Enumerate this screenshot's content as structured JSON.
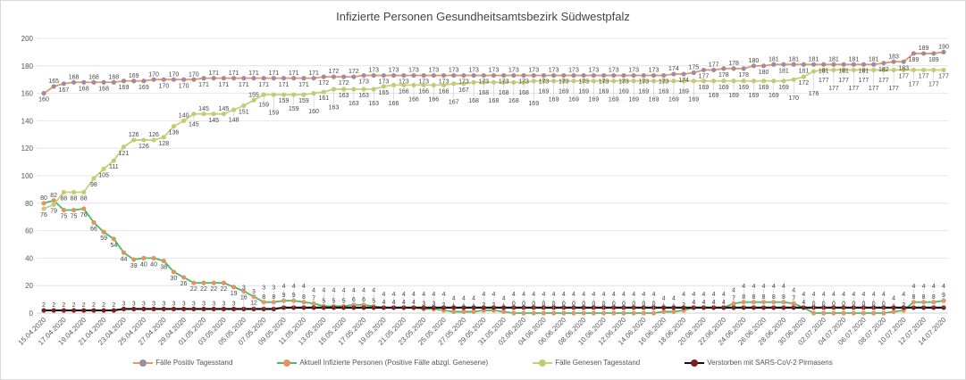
{
  "chart_data": {
    "type": "line",
    "title": "Infizierte Personen Gesundheitsamtsbezirk Südwestpfalz",
    "xlabel": "",
    "ylabel": "",
    "ylim": [
      0,
      200
    ],
    "yticks": [
      0,
      20,
      40,
      60,
      80,
      100,
      120,
      140,
      160,
      180,
      200
    ],
    "grid": true,
    "legend_position": "bottom",
    "start_date": "15.04.2020",
    "end_date": "14.07.2020",
    "x_tick_every": 2,
    "series": [
      {
        "name": "Fälle Positiv Tagesstand",
        "line_color": "#E8955E",
        "marker_color": "#9D8CA6",
        "values": [
          160,
          165,
          167,
          168,
          168,
          168,
          168,
          168,
          169,
          169,
          169,
          170,
          170,
          170,
          170,
          170,
          171,
          171,
          171,
          171,
          171,
          171,
          171,
          171,
          171,
          171,
          171,
          171,
          172,
          172,
          172,
          172,
          173,
          173,
          173,
          173,
          173,
          173,
          173,
          173,
          173,
          173,
          173,
          173,
          173,
          173,
          173,
          173,
          173,
          173,
          173,
          173,
          173,
          173,
          173,
          173,
          173,
          173,
          173,
          173,
          173,
          173,
          173,
          174,
          174,
          175,
          177,
          177,
          178,
          178,
          178,
          180,
          180,
          181,
          181,
          181,
          181,
          181,
          181,
          181,
          181,
          181,
          181,
          181,
          182,
          183,
          183,
          189,
          189,
          189,
          190
        ]
      },
      {
        "name": "Aktuell Infizierte Personen (Positive Fälle abzgl. Genesene)",
        "line_color": "#4DB86B",
        "marker_color": "#E0955C",
        "values": [
          80,
          82,
          75,
          75,
          76,
          66,
          59,
          54,
          44,
          39,
          40,
          40,
          38,
          30,
          26,
          22,
          22,
          22,
          22,
          19,
          16,
          12,
          8,
          8,
          9,
          9,
          8,
          7,
          5,
          5,
          5,
          6,
          6,
          5,
          4,
          4,
          4,
          4,
          3,
          3,
          2,
          1,
          1,
          1,
          2,
          2,
          1,
          0,
          0,
          0,
          0,
          0,
          0,
          0,
          0,
          0,
          0,
          0,
          0,
          0,
          0,
          0,
          1,
          1,
          2,
          4,
          4,
          4,
          4,
          7,
          8,
          8,
          8,
          8,
          8,
          7,
          4,
          0,
          0,
          0,
          0,
          0,
          0,
          0,
          0,
          1,
          2,
          8,
          8,
          8,
          9
        ]
      },
      {
        "name": "Fälle Genesen Tagesstand",
        "line_color": "#C9CE7E",
        "marker_color": "#C5CB72",
        "values": [
          76,
          79,
          88,
          88,
          88,
          98,
          105,
          111,
          121,
          126,
          126,
          126,
          128,
          136,
          140,
          145,
          145,
          145,
          145,
          148,
          151,
          155,
          159,
          159,
          159,
          159,
          159,
          160,
          161,
          163,
          163,
          163,
          163,
          163,
          165,
          166,
          166,
          166,
          166,
          166,
          166,
          167,
          167,
          168,
          168,
          168,
          168,
          168,
          168,
          169,
          169,
          169,
          169,
          169,
          169,
          169,
          169,
          169,
          169,
          169,
          169,
          169,
          169,
          169,
          169,
          169,
          169,
          169,
          169,
          169,
          169,
          169,
          169,
          169,
          169,
          170,
          172,
          176,
          177,
          177,
          177,
          177,
          177,
          177,
          177,
          177,
          177,
          177,
          177,
          177,
          177
        ]
      },
      {
        "name": "Verstorben mit SARS-CoV-2 Pirmasens",
        "line_color": "#111111",
        "marker_color": "#7A1E1E",
        "values": [
          2,
          2,
          2,
          2,
          2,
          2,
          2,
          2,
          3,
          3,
          3,
          3,
          3,
          3,
          3,
          3,
          3,
          3,
          3,
          3,
          3,
          3,
          3,
          3,
          4,
          4,
          4,
          4,
          4,
          4,
          4,
          4,
          4,
          4,
          4,
          4,
          4,
          4,
          4,
          4,
          4,
          4,
          4,
          4,
          4,
          4,
          4,
          4,
          4,
          4,
          4,
          4,
          4,
          4,
          4,
          4,
          4,
          4,
          4,
          4,
          4,
          4,
          4,
          4,
          4,
          4,
          4,
          4,
          4,
          4,
          4,
          4,
          4,
          4,
          4,
          4,
          4,
          4,
          4,
          4,
          4,
          4,
          4,
          4,
          4,
          4,
          4,
          4,
          4,
          4,
          4
        ]
      }
    ]
  }
}
